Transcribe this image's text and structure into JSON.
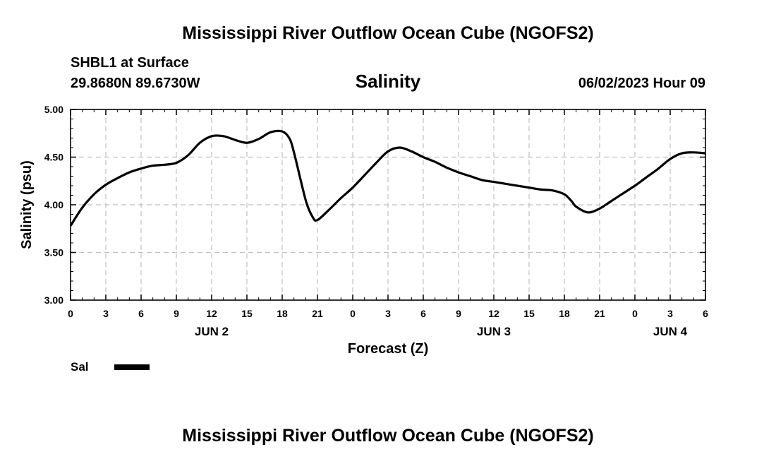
{
  "title": "Mississippi River Outflow Ocean Cube (NGOFS2)",
  "station": {
    "name": "SHBL1 at Surface",
    "coords": "29.8680N  89.6730W"
  },
  "subtitle": "Salinity",
  "timestamp": "06/02/2023 Hour 09",
  "footer_title": "Mississippi River Outflow Ocean Cube (NGOFS2)",
  "legend": {
    "label": "Sal",
    "color": "#000000"
  },
  "chart_data": {
    "type": "line",
    "title": "Salinity",
    "xlabel": "Forecast (Z)",
    "ylabel": "Salinity (psu)",
    "xlim": [
      0,
      54
    ],
    "ylim": [
      3.0,
      5.0
    ],
    "x_ticks": [
      0,
      3,
      6,
      9,
      12,
      15,
      18,
      21,
      24,
      27,
      30,
      33,
      36,
      39,
      42,
      45,
      48,
      51,
      54
    ],
    "x_tick_labels": [
      "0",
      "3",
      "6",
      "9",
      "12",
      "15",
      "18",
      "21",
      "0",
      "3",
      "6",
      "9",
      "12",
      "15",
      "18",
      "21",
      "0",
      "3",
      "6"
    ],
    "y_ticks": [
      3.0,
      3.5,
      4.0,
      4.5,
      5.0
    ],
    "y_tick_labels": [
      "3.00",
      "3.50",
      "4.00",
      "4.50",
      "5.00"
    ],
    "day_labels": [
      {
        "x": 12,
        "label": "JUN 2"
      },
      {
        "x": 36,
        "label": "JUN 3"
      },
      {
        "x": 51,
        "label": "JUN 4"
      }
    ],
    "grid": true,
    "series": [
      {
        "name": "Sal",
        "color": "#000000",
        "x": [
          0,
          1,
          2,
          3,
          4,
          5,
          6,
          7,
          8,
          9,
          10,
          11,
          12,
          13,
          14,
          15,
          16,
          17,
          18,
          18.6,
          19,
          20,
          20.6,
          21,
          22,
          23,
          24,
          25,
          26,
          27,
          28,
          29,
          30,
          31,
          32,
          33,
          34,
          35,
          36,
          37,
          38,
          39,
          40,
          41,
          42,
          42.6,
          43,
          44,
          45,
          46,
          47,
          48,
          49,
          50,
          51,
          52,
          53,
          54
        ],
        "values": [
          3.78,
          3.97,
          4.11,
          4.21,
          4.28,
          4.34,
          4.38,
          4.41,
          4.42,
          4.44,
          4.52,
          4.65,
          4.72,
          4.72,
          4.68,
          4.65,
          4.69,
          4.76,
          4.77,
          4.7,
          4.55,
          4.05,
          3.87,
          3.84,
          3.95,
          4.07,
          4.18,
          4.31,
          4.44,
          4.56,
          4.6,
          4.56,
          4.5,
          4.45,
          4.39,
          4.34,
          4.3,
          4.26,
          4.24,
          4.22,
          4.2,
          4.18,
          4.16,
          4.15,
          4.11,
          4.04,
          3.98,
          3.92,
          3.96,
          4.04,
          4.12,
          4.2,
          4.29,
          4.38,
          4.48,
          4.54,
          4.55,
          4.54
        ]
      }
    ]
  }
}
